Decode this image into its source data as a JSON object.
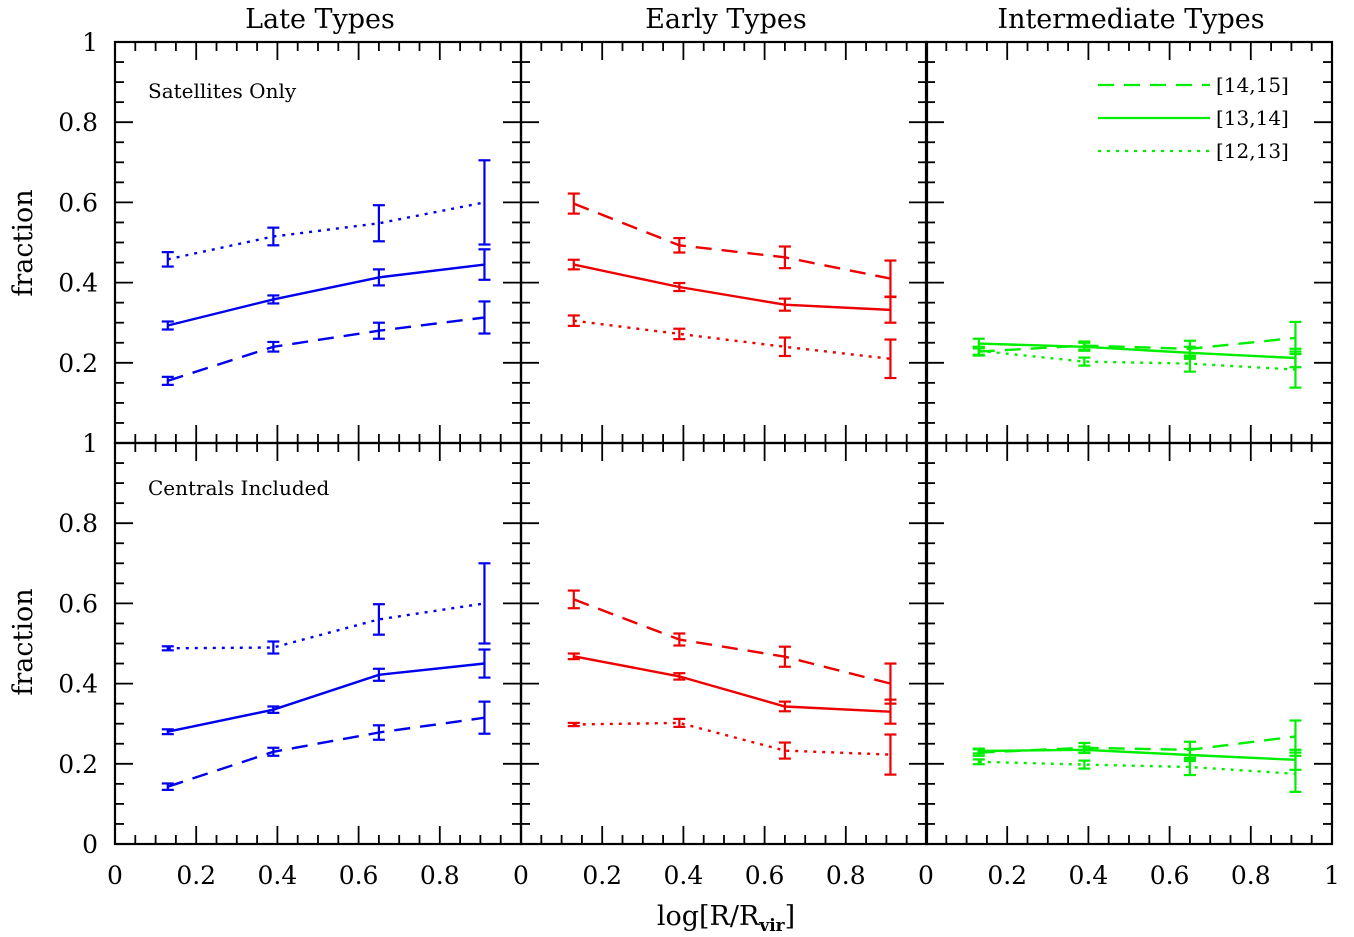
{
  "figure": {
    "column_titles": [
      "Late Types",
      "Early Types",
      "Intermediate Types"
    ],
    "row_annotations": [
      "Satellites Only",
      "Centrals Included"
    ],
    "ylabel": "fraction",
    "xlabel_main": "log[R/R",
    "xlabel_sub": "vir",
    "xlabel_end": "]",
    "x_tick_labels": [
      "0",
      "0.2",
      "0.4",
      "0.6",
      "0.8",
      "1"
    ],
    "y_tick_labels": [
      "0",
      "0.2",
      "0.4",
      "0.6",
      "0.8",
      "1"
    ],
    "legend": [
      {
        "label": "[14,15]",
        "style": "dashed"
      },
      {
        "label": "[13,14]",
        "style": "solid"
      },
      {
        "label": "[12,13]",
        "style": "dotted"
      }
    ]
  },
  "chart_data": [
    {
      "type": "line",
      "row": 0,
      "col": 0,
      "title": "Late Types",
      "annotation": "Satellites Only",
      "color": "#0000ee",
      "xlim": [
        0,
        1
      ],
      "ylim": [
        0,
        1
      ],
      "x": [
        0.13,
        0.39,
        0.65,
        0.91
      ],
      "series": [
        {
          "name": "[14,15]",
          "style": "dashed",
          "values": [
            0.155,
            0.24,
            0.28,
            0.313
          ],
          "errors": [
            0.01,
            0.012,
            0.02,
            0.04
          ]
        },
        {
          "name": "[13,14]",
          "style": "solid",
          "values": [
            0.293,
            0.358,
            0.413,
            0.445
          ],
          "errors": [
            0.01,
            0.01,
            0.02,
            0.038
          ]
        },
        {
          "name": "[12,13]",
          "style": "dotted",
          "values": [
            0.458,
            0.515,
            0.548,
            0.6
          ],
          "errors": [
            0.018,
            0.022,
            0.045,
            0.105
          ]
        }
      ]
    },
    {
      "type": "line",
      "row": 0,
      "col": 1,
      "title": "Early Types",
      "annotation": "",
      "color": "#ee0000",
      "xlim": [
        0,
        1
      ],
      "ylim": [
        0,
        1
      ],
      "x": [
        0.13,
        0.39,
        0.65,
        0.91
      ],
      "series": [
        {
          "name": "[14,15]",
          "style": "dashed",
          "values": [
            0.597,
            0.493,
            0.463,
            0.41
          ],
          "errors": [
            0.025,
            0.018,
            0.027,
            0.045
          ]
        },
        {
          "name": "[13,14]",
          "style": "solid",
          "values": [
            0.445,
            0.389,
            0.345,
            0.332
          ],
          "errors": [
            0.012,
            0.01,
            0.015,
            0.032
          ]
        },
        {
          "name": "[12,13]",
          "style": "dotted",
          "values": [
            0.305,
            0.272,
            0.24,
            0.21
          ],
          "errors": [
            0.013,
            0.013,
            0.023,
            0.048
          ]
        }
      ]
    },
    {
      "type": "line",
      "row": 0,
      "col": 2,
      "title": "Intermediate Types",
      "annotation": "",
      "color": "#00ee00",
      "xlim": [
        0,
        1
      ],
      "ylim": [
        0,
        1
      ],
      "x": [
        0.13,
        0.39,
        0.65,
        0.91
      ],
      "series": [
        {
          "name": "[14,15]",
          "style": "dashed",
          "values": [
            0.228,
            0.243,
            0.235,
            0.262
          ],
          "errors": [
            0.01,
            0.01,
            0.02,
            0.04
          ]
        },
        {
          "name": "[13,14]",
          "style": "solid",
          "values": [
            0.248,
            0.24,
            0.225,
            0.212
          ],
          "errors": [
            0.012,
            0.01,
            0.015,
            0.023
          ]
        },
        {
          "name": "[12,13]",
          "style": "dotted",
          "values": [
            0.23,
            0.203,
            0.198,
            0.183
          ],
          "errors": [
            0.01,
            0.01,
            0.02,
            0.045
          ]
        }
      ]
    },
    {
      "type": "line",
      "row": 1,
      "col": 0,
      "title": "Late Types",
      "annotation": "Centrals Included",
      "color": "#0000ee",
      "xlim": [
        0,
        1
      ],
      "ylim": [
        0,
        1
      ],
      "x": [
        0.13,
        0.39,
        0.65,
        0.91
      ],
      "series": [
        {
          "name": "[14,15]",
          "style": "dashed",
          "values": [
            0.143,
            0.23,
            0.278,
            0.315
          ],
          "errors": [
            0.008,
            0.01,
            0.018,
            0.04
          ]
        },
        {
          "name": "[13,14]",
          "style": "solid",
          "values": [
            0.28,
            0.335,
            0.422,
            0.45
          ],
          "errors": [
            0.006,
            0.008,
            0.015,
            0.035
          ]
        },
        {
          "name": "[12,13]",
          "style": "dotted",
          "values": [
            0.488,
            0.49,
            0.56,
            0.6
          ],
          "errors": [
            0.005,
            0.015,
            0.038,
            0.1
          ]
        }
      ]
    },
    {
      "type": "line",
      "row": 1,
      "col": 1,
      "title": "Early Types",
      "annotation": "",
      "color": "#ee0000",
      "xlim": [
        0,
        1
      ],
      "ylim": [
        0,
        1
      ],
      "x": [
        0.13,
        0.39,
        0.65,
        0.91
      ],
      "series": [
        {
          "name": "[14,15]",
          "style": "dashed",
          "values": [
            0.61,
            0.51,
            0.467,
            0.4
          ],
          "errors": [
            0.022,
            0.015,
            0.025,
            0.05
          ]
        },
        {
          "name": "[13,14]",
          "style": "solid",
          "values": [
            0.468,
            0.418,
            0.343,
            0.33
          ],
          "errors": [
            0.007,
            0.008,
            0.012,
            0.03
          ]
        },
        {
          "name": "[12,13]",
          "style": "dotted",
          "values": [
            0.298,
            0.302,
            0.233,
            0.223
          ],
          "errors": [
            0.004,
            0.01,
            0.02,
            0.05
          ]
        }
      ]
    },
    {
      "type": "line",
      "row": 1,
      "col": 2,
      "title": "Intermediate Types",
      "annotation": "",
      "color": "#00ee00",
      "xlim": [
        0,
        1
      ],
      "ylim": [
        0,
        1
      ],
      "x": [
        0.13,
        0.39,
        0.65,
        0.91
      ],
      "series": [
        {
          "name": "[14,15]",
          "style": "dashed",
          "values": [
            0.228,
            0.24,
            0.235,
            0.268
          ],
          "errors": [
            0.008,
            0.012,
            0.02,
            0.04
          ]
        },
        {
          "name": "[13,14]",
          "style": "solid",
          "values": [
            0.232,
            0.235,
            0.222,
            0.21
          ],
          "errors": [
            0.006,
            0.008,
            0.015,
            0.025
          ]
        },
        {
          "name": "[12,13]",
          "style": "dotted",
          "values": [
            0.205,
            0.198,
            0.192,
            0.175
          ],
          "errors": [
            0.006,
            0.01,
            0.02,
            0.045
          ]
        }
      ]
    }
  ]
}
